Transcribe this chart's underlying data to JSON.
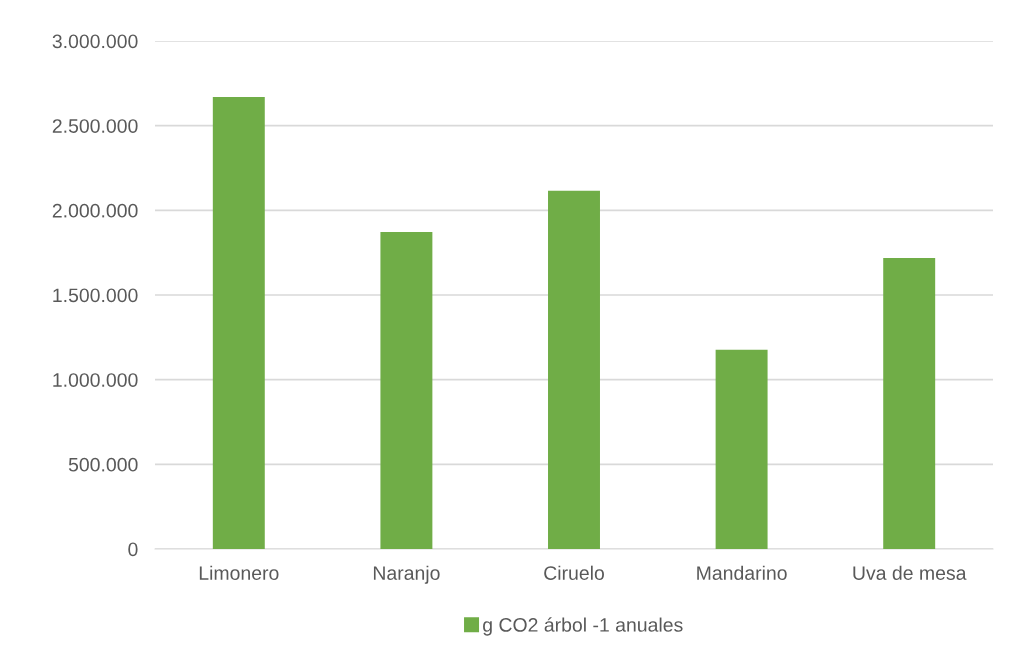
{
  "chart_data": {
    "type": "bar",
    "categories": [
      "Limonero",
      "Naranjo",
      "Ciruelo",
      "Mandarino",
      "Uva de mesa"
    ],
    "series": [
      {
        "name": "g CO2 árbol -1 anuales",
        "color": "#70ad47",
        "values": [
          2670000,
          1872000,
          2115000,
          1176000,
          1718000
        ]
      }
    ],
    "ylim": [
      0,
      3000000
    ],
    "yticks": [
      {
        "value": 0,
        "label": "0"
      },
      {
        "value": 500000,
        "label": "500.000"
      },
      {
        "value": 1000000,
        "label": "1.000.000"
      },
      {
        "value": 1500000,
        "label": "1.500.000"
      },
      {
        "value": 2000000,
        "label": "2.000.000"
      },
      {
        "value": 2500000,
        "label": "2.500.000"
      },
      {
        "value": 3000000,
        "label": "3.000.000"
      }
    ],
    "grid": "y",
    "legend": "bottom"
  }
}
